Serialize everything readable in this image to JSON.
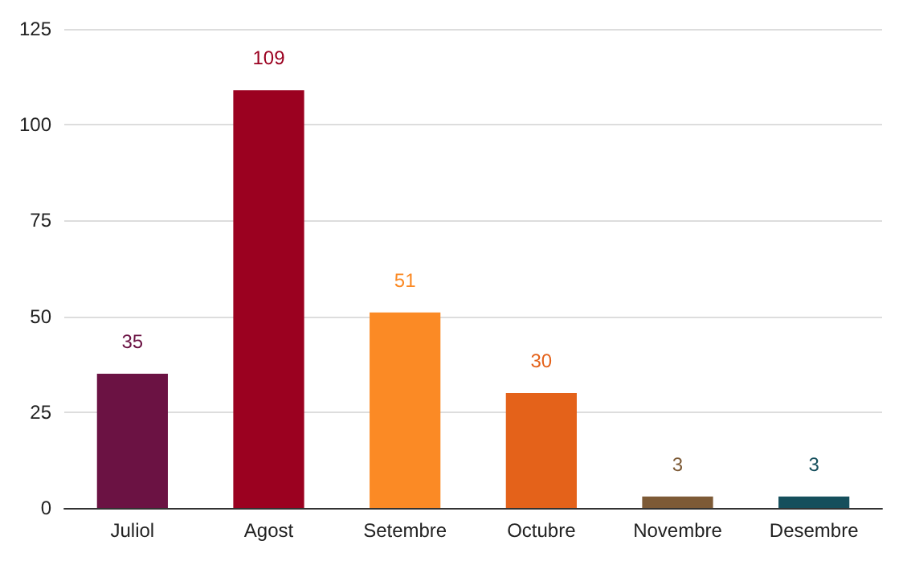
{
  "chart_data": {
    "type": "bar",
    "categories": [
      "Juliol",
      "Agost",
      "Setembre",
      "Octubre",
      "Novembre",
      "Desembre"
    ],
    "values": [
      35,
      109,
      51,
      30,
      3,
      3
    ],
    "colors": [
      "#6b1243",
      "#9b0120",
      "#fb8a25",
      "#e4621a",
      "#7d5a36",
      "#154f5c"
    ],
    "ylim": [
      0,
      125
    ],
    "yticks": [
      0,
      25,
      50,
      75,
      100,
      125
    ],
    "grid": "y",
    "data_labels": true
  }
}
